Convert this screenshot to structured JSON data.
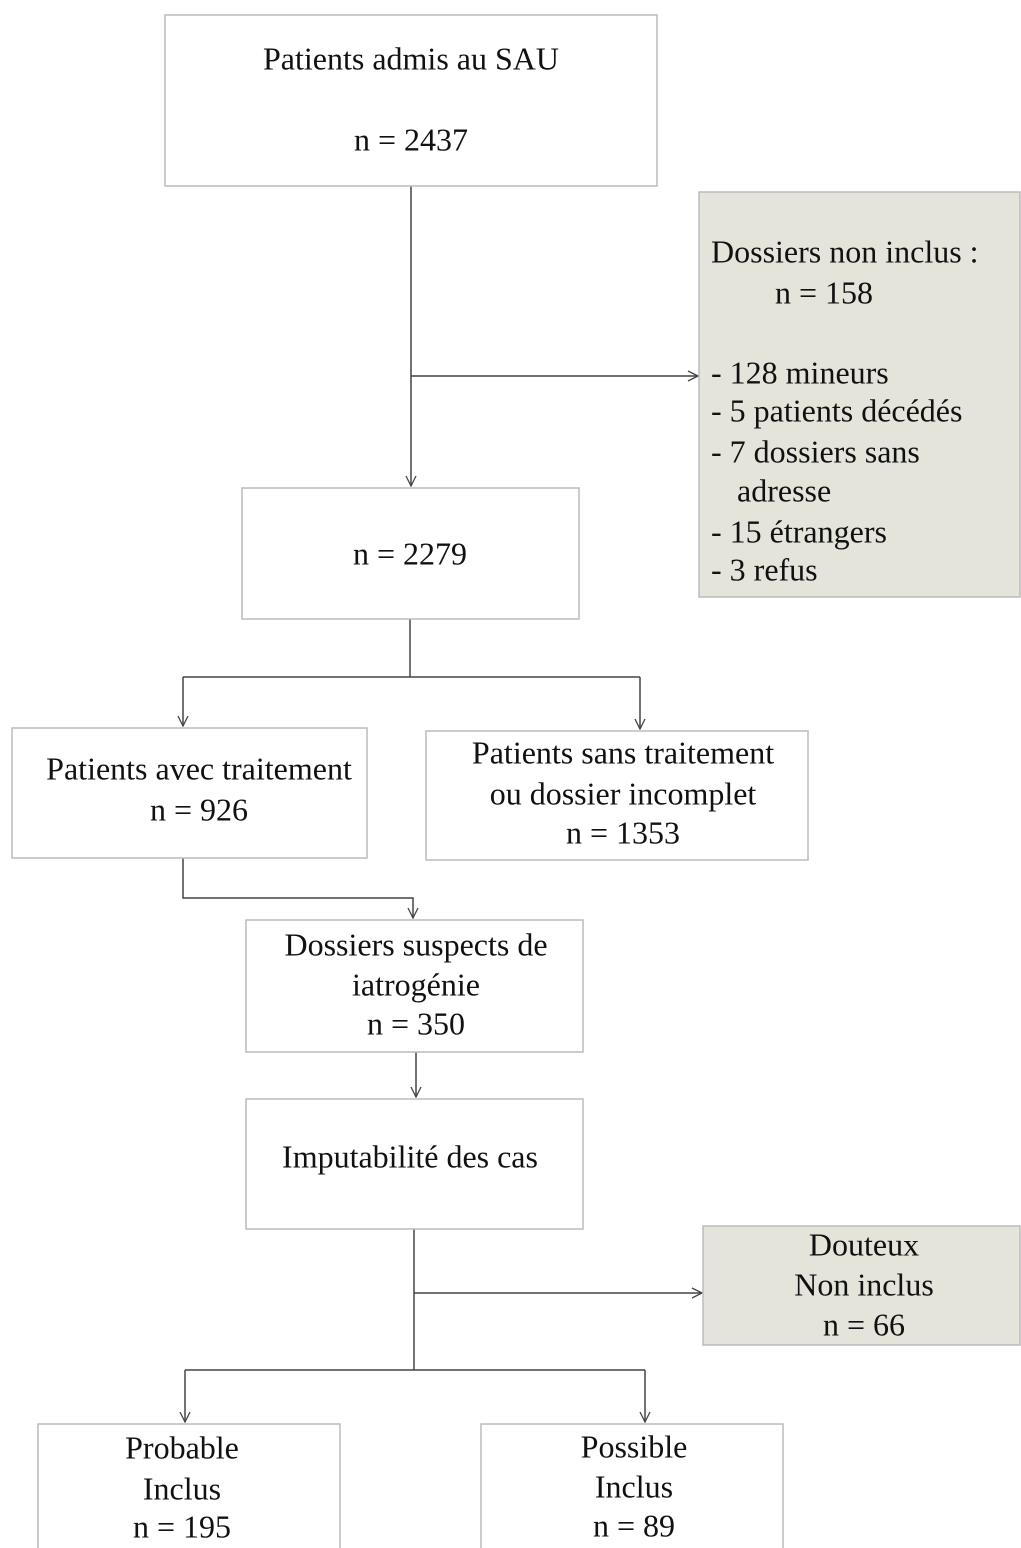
{
  "nodes": [
    {
      "lines": [
        "Patients admis au SAU",
        "n = 2437"
      ]
    },
    {
      "lines": [
        "Dossiers non inclus :",
        "n = 158",
        "- 128 mineurs",
        "- 5 patients décédés",
        "- 7 dossiers sans",
        "adresse",
        "- 15 étrangers",
        "- 3 refus"
      ]
    },
    {
      "lines": [
        "n = 2279"
      ]
    },
    {
      "lines": [
        "Patients avec traitement",
        "n = 926"
      ]
    },
    {
      "lines": [
        "Patients sans traitement",
        "ou dossier incomplet",
        "n = 1353"
      ]
    },
    {
      "lines": [
        "Dossiers suspects de",
        "iatrogénie",
        "n = 350"
      ]
    },
    {
      "lines": [
        "Imputabilité des cas"
      ]
    },
    {
      "lines": [
        "Douteux",
        "Non inclus",
        "n = 66"
      ]
    },
    {
      "lines": [
        "Probable",
        "Inclus",
        "n = 195"
      ]
    },
    {
      "lines": [
        "Possible",
        "Inclus",
        "n = 89"
      ]
    }
  ]
}
